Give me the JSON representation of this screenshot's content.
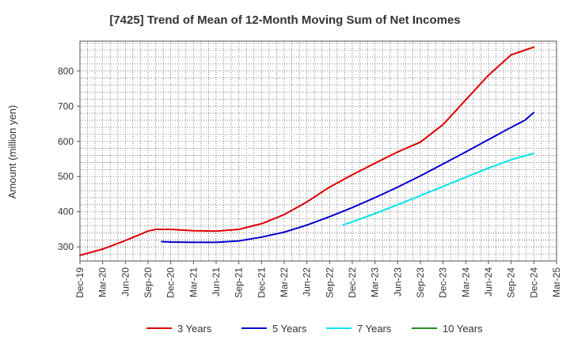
{
  "chart_data": {
    "type": "line",
    "title": "[7425]  Trend of Mean of 12-Month Moving Sum of Net Incomes",
    "xlabel": "",
    "ylabel": "Amount (million yen)",
    "ylim": [
      260,
      885
    ],
    "yticks": [
      300,
      400,
      500,
      600,
      700,
      800
    ],
    "x_ticks": [
      "Dec-19",
      "Mar-20",
      "Jun-20",
      "Sep-20",
      "Dec-20",
      "Mar-21",
      "Jun-21",
      "Sep-21",
      "Dec-21",
      "Mar-22",
      "Jun-22",
      "Sep-22",
      "Dec-22",
      "Mar-23",
      "Jun-23",
      "Sep-23",
      "Dec-23",
      "Mar-24",
      "Jun-24",
      "Sep-24",
      "Dec-24",
      "Mar-25"
    ],
    "grid": true,
    "legend_position": "bottom",
    "series": [
      {
        "name": "3 Years",
        "color": "#dd0000",
        "points": [
          [
            0,
            276
          ],
          [
            1,
            294
          ],
          [
            2,
            318
          ],
          [
            3,
            345
          ],
          [
            3.33,
            350
          ],
          [
            4,
            350
          ],
          [
            5,
            346
          ],
          [
            6,
            345
          ],
          [
            7,
            350
          ],
          [
            8,
            366
          ],
          [
            9,
            392
          ],
          [
            10,
            428
          ],
          [
            11,
            470
          ],
          [
            12,
            505
          ],
          [
            13,
            538
          ],
          [
            14,
            570
          ],
          [
            15,
            598
          ],
          [
            16,
            648
          ],
          [
            17,
            718
          ],
          [
            18,
            788
          ],
          [
            19,
            846
          ],
          [
            20,
            868
          ]
        ]
      },
      {
        "name": "5 Years",
        "color": "#0000cc",
        "points": [
          [
            3.6,
            315
          ],
          [
            4,
            314
          ],
          [
            5,
            313
          ],
          [
            6,
            313
          ],
          [
            7,
            317
          ],
          [
            8,
            328
          ],
          [
            9,
            342
          ],
          [
            10,
            362
          ],
          [
            11,
            386
          ],
          [
            12,
            412
          ],
          [
            13,
            440
          ],
          [
            14,
            470
          ],
          [
            15,
            502
          ],
          [
            16,
            536
          ],
          [
            17,
            570
          ],
          [
            18,
            605
          ],
          [
            19,
            640
          ],
          [
            19.6,
            660
          ],
          [
            20,
            682
          ]
        ]
      },
      {
        "name": "7 Years",
        "color": "#00e5ee",
        "points": [
          [
            11.6,
            363
          ],
          [
            12,
            371
          ],
          [
            13,
            395
          ],
          [
            14,
            420
          ],
          [
            15,
            446
          ],
          [
            16,
            472
          ],
          [
            17,
            498
          ],
          [
            18,
            524
          ],
          [
            19,
            548
          ],
          [
            20,
            566
          ]
        ]
      },
      {
        "name": "10 Years",
        "color": "#228b22",
        "points": []
      }
    ]
  }
}
